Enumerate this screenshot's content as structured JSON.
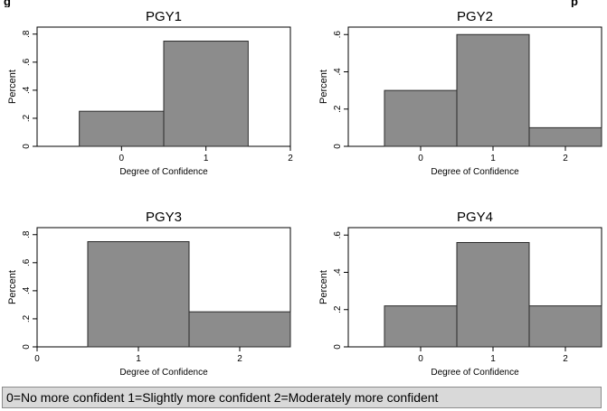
{
  "figure_caption": {
    "left_fragment": "g",
    "right_fragment": "p"
  },
  "legend_note": "0=No more confident 1=Slightly more confident 2=Moderately more confident",
  "colors": {
    "bar_fill": "#8c8c8c",
    "bar_stroke": "#2a2a2a",
    "axis": "#000000",
    "note_bg": "#d9d9d9"
  },
  "chart_data": [
    {
      "type": "bar",
      "title": "PGY1",
      "xlabel": "Degree of Confidence",
      "ylabel": "Percent",
      "x_ticks": [
        "0",
        "1",
        "2"
      ],
      "x_tick_values": [
        0,
        1,
        2
      ],
      "y_ticks": [
        "0",
        ".2",
        ".4",
        ".6",
        ".8"
      ],
      "y_tick_values": [
        0,
        0.2,
        0.4,
        0.6,
        0.8
      ],
      "xlim": [
        -1,
        2
      ],
      "ylim": [
        0,
        0.85
      ],
      "categories": [
        0,
        1
      ],
      "values": [
        0.25,
        0.75
      ]
    },
    {
      "type": "bar",
      "title": "PGY2",
      "xlabel": "Degree of Confidence",
      "ylabel": "Percent",
      "x_ticks": [
        "0",
        "1",
        "2"
      ],
      "x_tick_values": [
        0,
        1,
        2
      ],
      "y_ticks": [
        "0",
        ".2",
        ".4",
        ".6"
      ],
      "y_tick_values": [
        0,
        0.2,
        0.4,
        0.6
      ],
      "xlim": [
        -1,
        2.5
      ],
      "ylim": [
        0,
        0.64
      ],
      "categories": [
        0,
        1,
        2
      ],
      "values": [
        0.3,
        0.6,
        0.1
      ]
    },
    {
      "type": "bar",
      "title": "PGY3",
      "xlabel": "Degree of Confidence",
      "ylabel": "Percent",
      "x_ticks": [
        "0",
        "1",
        "2"
      ],
      "x_tick_values": [
        0,
        1,
        2
      ],
      "y_ticks": [
        "0",
        ".2",
        ".4",
        ".6",
        ".8"
      ],
      "y_tick_values": [
        0,
        0.2,
        0.4,
        0.6,
        0.8
      ],
      "xlim": [
        0,
        2.5
      ],
      "ylim": [
        0,
        0.85
      ],
      "categories": [
        1,
        2
      ],
      "values": [
        0.75,
        0.25
      ]
    },
    {
      "type": "bar",
      "title": "PGY4",
      "xlabel": "Degree of Confidence",
      "ylabel": "Percent",
      "x_ticks": [
        "0",
        "1",
        "2"
      ],
      "x_tick_values": [
        0,
        1,
        2
      ],
      "y_ticks": [
        "0",
        ".2",
        ".4",
        ".6"
      ],
      "y_tick_values": [
        0,
        0.2,
        0.4,
        0.6
      ],
      "xlim": [
        -1,
        2.5
      ],
      "ylim": [
        0,
        0.64
      ],
      "categories": [
        0,
        1,
        2
      ],
      "values": [
        0.22,
        0.56,
        0.22
      ]
    }
  ]
}
